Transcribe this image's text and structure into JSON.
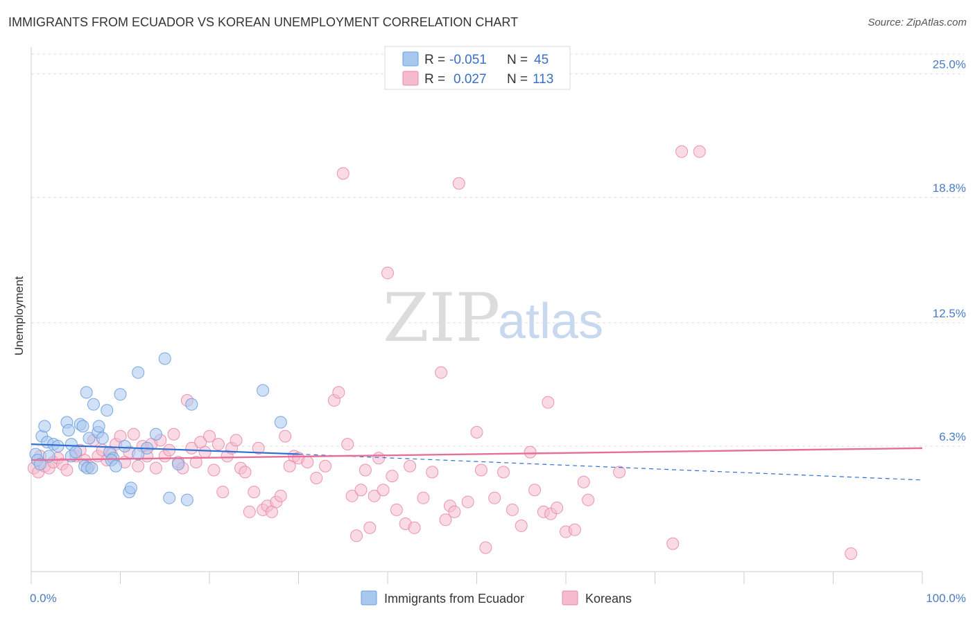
{
  "title": "IMMIGRANTS FROM ECUADOR VS KOREAN UNEMPLOYMENT CORRELATION CHART",
  "source": "Source: ZipAtlas.com",
  "watermark": {
    "zip": "ZIP",
    "atlas": "atlas"
  },
  "colors": {
    "blue_fill": "#a9c8f0",
    "blue_stroke": "#6a9fdc",
    "blue_line": "#2f6fd0",
    "pink_fill": "#f6bccd",
    "pink_stroke": "#e88aa8",
    "pink_line": "#e56f97",
    "grid": "#dddddd",
    "tick_text": "#4a7bc4"
  },
  "legend": {
    "series": [
      {
        "r_label": "R =",
        "r_value": "-0.051",
        "n_label": "N =",
        "n_value": "45"
      },
      {
        "r_label": "R =",
        "r_value": "0.027",
        "n_label": "N =",
        "n_value": "113"
      }
    ]
  },
  "chart_data": {
    "type": "scatter",
    "title": "IMMIGRANTS FROM ECUADOR VS KOREAN UNEMPLOYMENT CORRELATION CHART",
    "xlabel": "",
    "ylabel": "Unemployment",
    "xlim": [
      0,
      100
    ],
    "ylim": [
      0,
      26
    ],
    "x_tick_labels": [
      {
        "value": 0,
        "label": "0.0%"
      },
      {
        "value": 100,
        "label": "100.0%"
      }
    ],
    "y_tick_labels": [
      {
        "value": 6.3,
        "label": "6.3%"
      },
      {
        "value": 12.5,
        "label": "12.5%"
      },
      {
        "value": 18.8,
        "label": "18.8%"
      },
      {
        "value": 25.0,
        "label": "25.0%"
      }
    ],
    "series": [
      {
        "name": "Immigrants from Ecuador",
        "color": "#a9c8f0",
        "trend": {
          "x0": 0,
          "y0": 6.4,
          "x1": 30,
          "y1": 5.9,
          "dashed_to_x": 100,
          "dashed_to_y": 4.6
        },
        "points": [
          [
            0.5,
            5.9
          ],
          [
            0.7,
            5.6
          ],
          [
            1.0,
            5.4
          ],
          [
            1.2,
            6.8
          ],
          [
            1.5,
            7.3
          ],
          [
            1.8,
            6.5
          ],
          [
            2.0,
            5.8
          ],
          [
            2.5,
            6.4
          ],
          [
            3.0,
            6.3
          ],
          [
            4.0,
            7.5
          ],
          [
            4.5,
            6.4
          ],
          [
            4.5,
            5.8
          ],
          [
            5.0,
            6.0
          ],
          [
            4.2,
            7.1
          ],
          [
            5.5,
            7.4
          ],
          [
            5.8,
            7.3
          ],
          [
            6.2,
            9.0
          ],
          [
            6.0,
            5.3
          ],
          [
            6.3,
            5.2
          ],
          [
            6.5,
            6.7
          ],
          [
            6.8,
            5.2
          ],
          [
            7.0,
            8.4
          ],
          [
            7.5,
            7.0
          ],
          [
            7.6,
            7.3
          ],
          [
            8.0,
            6.7
          ],
          [
            8.5,
            8.1
          ],
          [
            8.8,
            6.0
          ],
          [
            9.2,
            5.7
          ],
          [
            9.0,
            5.6
          ],
          [
            9.5,
            5.3
          ],
          [
            10.0,
            8.9
          ],
          [
            10.5,
            6.3
          ],
          [
            11.0,
            4.0
          ],
          [
            11.2,
            4.2
          ],
          [
            12.0,
            5.9
          ],
          [
            12.0,
            10.0
          ],
          [
            13.0,
            6.2
          ],
          [
            14.0,
            6.9
          ],
          [
            15.0,
            10.7
          ],
          [
            15.5,
            3.7
          ],
          [
            16.5,
            5.4
          ],
          [
            17.5,
            3.6
          ],
          [
            18.0,
            8.4
          ],
          [
            26.0,
            9.1
          ],
          [
            28.0,
            7.5
          ]
        ]
      },
      {
        "name": "Koreans",
        "color": "#f6bccd",
        "trend": {
          "x0": 0,
          "y0": 5.6,
          "x1": 100,
          "y1": 6.2
        },
        "points": [
          [
            0.3,
            5.2
          ],
          [
            0.8,
            5.0
          ],
          [
            1.0,
            5.8
          ],
          [
            1.5,
            5.3
          ],
          [
            2.0,
            5.2
          ],
          [
            2.5,
            5.5
          ],
          [
            3.0,
            5.7
          ],
          [
            3.5,
            5.4
          ],
          [
            4.0,
            5.1
          ],
          [
            5.0,
            5.8
          ],
          [
            5.5,
            6.1
          ],
          [
            6.0,
            5.6
          ],
          [
            6.5,
            5.3
          ],
          [
            7.0,
            6.6
          ],
          [
            7.5,
            5.8
          ],
          [
            8.0,
            6.1
          ],
          [
            8.5,
            5.6
          ],
          [
            9.0,
            5.9
          ],
          [
            9.5,
            6.4
          ],
          [
            10.0,
            6.8
          ],
          [
            10.5,
            5.5
          ],
          [
            11.0,
            6.0
          ],
          [
            11.5,
            6.9
          ],
          [
            12.0,
            5.3
          ],
          [
            12.5,
            6.3
          ],
          [
            13.0,
            5.8
          ],
          [
            13.5,
            6.4
          ],
          [
            14.0,
            5.2
          ],
          [
            14.5,
            6.6
          ],
          [
            15.0,
            5.8
          ],
          [
            15.5,
            6.1
          ],
          [
            16.0,
            6.9
          ],
          [
            16.5,
            5.5
          ],
          [
            17.0,
            5.2
          ],
          [
            17.5,
            8.6
          ],
          [
            18.0,
            6.2
          ],
          [
            18.5,
            5.5
          ],
          [
            19.0,
            6.5
          ],
          [
            19.5,
            6.0
          ],
          [
            20.0,
            6.8
          ],
          [
            20.5,
            5.1
          ],
          [
            21.0,
            6.4
          ],
          [
            21.5,
            4.0
          ],
          [
            22.0,
            5.8
          ],
          [
            22.5,
            6.2
          ],
          [
            23.0,
            6.6
          ],
          [
            23.5,
            5.2
          ],
          [
            24.0,
            5.0
          ],
          [
            24.5,
            3.0
          ],
          [
            25.0,
            4.0
          ],
          [
            25.5,
            6.2
          ],
          [
            26.0,
            3.1
          ],
          [
            26.5,
            3.3
          ],
          [
            27.0,
            3.0
          ],
          [
            27.5,
            3.5
          ],
          [
            28.0,
            3.8
          ],
          [
            28.5,
            6.8
          ],
          [
            29.0,
            5.3
          ],
          [
            29.5,
            5.8
          ],
          [
            30.0,
            5.7
          ],
          [
            31.0,
            5.5
          ],
          [
            32.0,
            4.7
          ],
          [
            33.0,
            5.3
          ],
          [
            34.0,
            8.6
          ],
          [
            34.5,
            9.0
          ],
          [
            35.0,
            20.0
          ],
          [
            35.5,
            6.4
          ],
          [
            36.0,
            3.8
          ],
          [
            36.5,
            1.8
          ],
          [
            37.0,
            4.1
          ],
          [
            37.5,
            5.1
          ],
          [
            38.0,
            2.2
          ],
          [
            38.5,
            3.8
          ],
          [
            39.0,
            5.7
          ],
          [
            39.5,
            4.1
          ],
          [
            40.0,
            15.0
          ],
          [
            40.5,
            4.8
          ],
          [
            41.0,
            3.1
          ],
          [
            42.0,
            2.4
          ],
          [
            42.5,
            5.3
          ],
          [
            43.0,
            2.2
          ],
          [
            44.0,
            3.7
          ],
          [
            45.0,
            5.0
          ],
          [
            46.0,
            10.0
          ],
          [
            46.5,
            2.6
          ],
          [
            47.0,
            3.3
          ],
          [
            47.5,
            3.0
          ],
          [
            48.0,
            19.5
          ],
          [
            49.0,
            3.5
          ],
          [
            50.0,
            7.0
          ],
          [
            50.5,
            5.1
          ],
          [
            51.0,
            1.2
          ],
          [
            52.0,
            3.7
          ],
          [
            53.0,
            5.0
          ],
          [
            54.0,
            3.1
          ],
          [
            55.0,
            2.3
          ],
          [
            56.0,
            6.0
          ],
          [
            56.5,
            4.1
          ],
          [
            57.5,
            3.0
          ],
          [
            58.0,
            8.5
          ],
          [
            58.3,
            2.9
          ],
          [
            59.0,
            3.2
          ],
          [
            60.0,
            2.0
          ],
          [
            61.0,
            2.1
          ],
          [
            62.0,
            4.5
          ],
          [
            62.5,
            3.6
          ],
          [
            66.0,
            5.0
          ],
          [
            72.0,
            1.4
          ],
          [
            73.0,
            21.1
          ],
          [
            75.0,
            21.1
          ],
          [
            92.0,
            0.9
          ]
        ]
      }
    ]
  },
  "bottom_legend": [
    {
      "label": "Immigrants from Ecuador"
    },
    {
      "label": "Koreans"
    }
  ]
}
